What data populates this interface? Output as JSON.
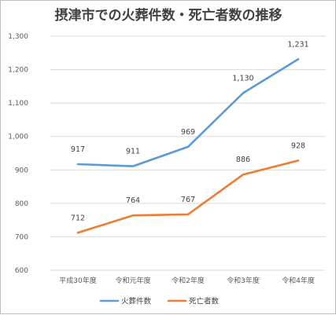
{
  "chart_data": {
    "type": "line",
    "title": "摂津市での火葬件数・死亡者数の推移",
    "categories": [
      "平成30年度",
      "令和元年度",
      "令和2年度",
      "令和3年度",
      "令和4年度"
    ],
    "series": [
      {
        "name": "火葬件数",
        "color": "#5b9bd5",
        "values": [
          917,
          911,
          969,
          1130,
          1231
        ],
        "labels": [
          "917",
          "911",
          "969",
          "1,130",
          "1,231"
        ]
      },
      {
        "name": "死亡者数",
        "color": "#ed7d31",
        "values": [
          712,
          764,
          767,
          886,
          928
        ],
        "labels": [
          "712",
          "764",
          "767",
          "886",
          "928"
        ]
      }
    ],
    "ylim": [
      600,
      1300
    ],
    "yticks": [
      600,
      700,
      800,
      900,
      1000,
      1100,
      1200,
      1300
    ],
    "ytick_labels": [
      "600",
      "700",
      "800",
      "900",
      "1,000",
      "1,100",
      "1,200",
      "1,300"
    ],
    "grid": true,
    "legend_position": "bottom"
  }
}
